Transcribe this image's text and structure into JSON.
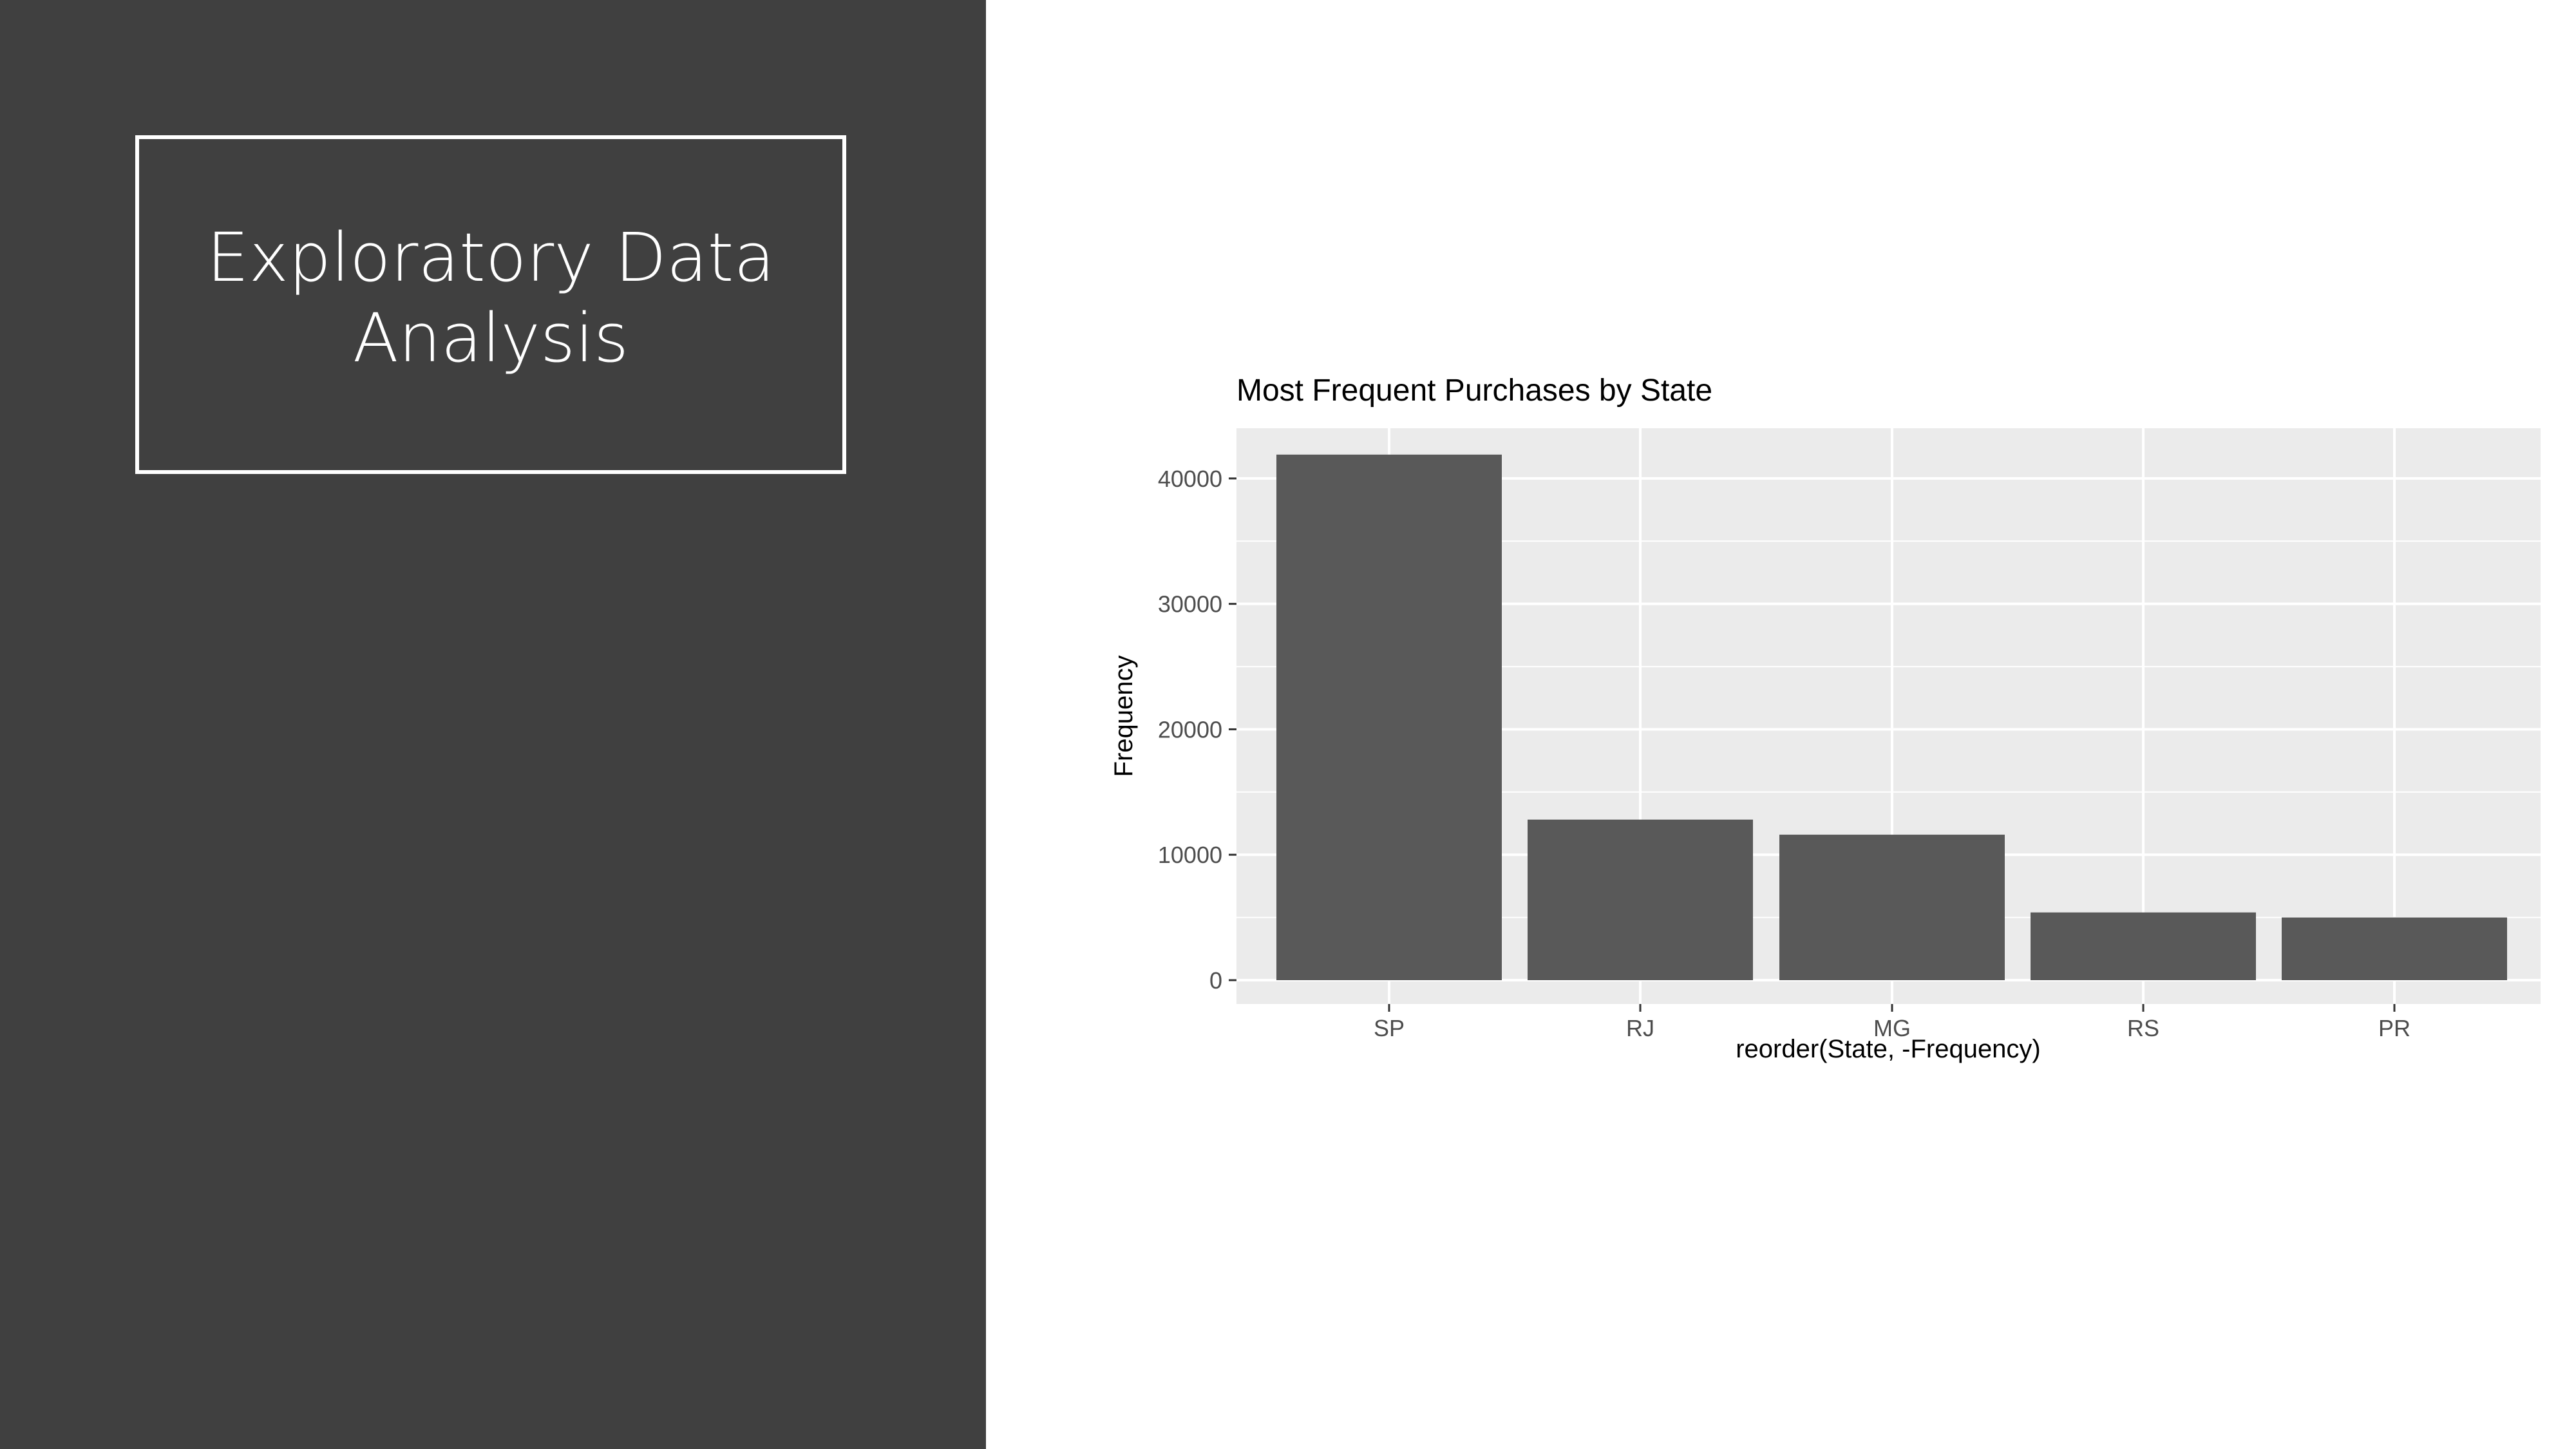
{
  "slide": {
    "title": "Exploratory Data Analysis"
  },
  "colors": {
    "left_panel": "#404040",
    "panel_background": "#EBEBEB",
    "bar_fill": "#595959",
    "grid": "#FFFFFF",
    "text_dark": "#000000",
    "tick_text": "#4D4D4D"
  },
  "chart_data": {
    "type": "bar",
    "title": "Most Frequent Purchases by State",
    "xlabel": "reorder(State, -Frequency)",
    "ylabel": "Frequency",
    "categories": [
      "SP",
      "RJ",
      "MG",
      "RS",
      "PR"
    ],
    "values": [
      41900,
      12800,
      11600,
      5400,
      5000
    ],
    "ylim": [
      0,
      44000
    ],
    "yticks": [
      0,
      10000,
      20000,
      30000,
      40000
    ],
    "grid": true,
    "legend": "none"
  }
}
